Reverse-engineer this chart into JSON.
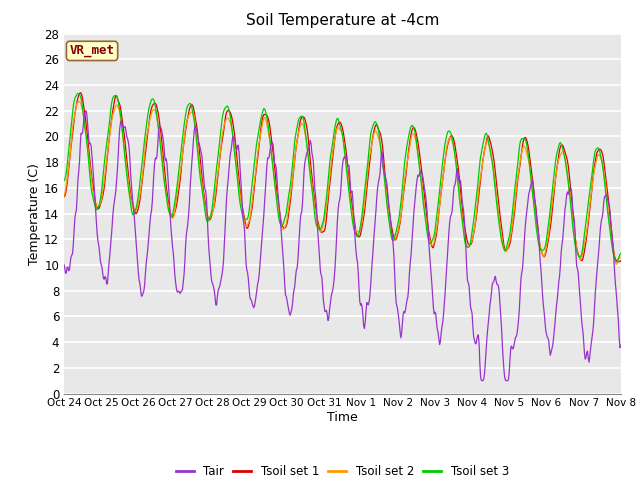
{
  "title": "Soil Temperature at -4cm",
  "xlabel": "Time",
  "ylabel": "Temperature (C)",
  "annotation": "VR_met",
  "ylim": [
    0,
    28
  ],
  "colors": {
    "Tair": "#9933CC",
    "Tsoil1": "#DD0000",
    "Tsoil2": "#FF9900",
    "Tsoil3": "#00CC00"
  },
  "legend_labels": [
    "Tair",
    "Tsoil set 1",
    "Tsoil set 2",
    "Tsoil set 3"
  ],
  "bg_color": "#E8E8E8",
  "grid_color": "white",
  "annotation_bg": "#FFFFCC",
  "annotation_border": "#996633",
  "tick_labels": [
    "Oct 24",
    "Oct 25",
    "Oct 26",
    "Oct 27",
    "Oct 28",
    "Oct 29",
    "Oct 30",
    "Oct 31",
    "Nov 1",
    "Nov 2",
    "Nov 3",
    "Nov 4",
    "Nov 5",
    "Nov 6",
    "Nov 7",
    "Nov 8"
  ]
}
